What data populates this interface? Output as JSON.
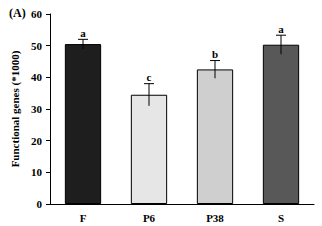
{
  "chart_data": {
    "type": "bar",
    "title": "(A)",
    "y_label": "Functional genes (*1000)",
    "categories": [
      "F",
      "P6",
      "P38",
      "S"
    ],
    "values": [
      50.5,
      34.5,
      42.5,
      50.3
    ],
    "errors": [
      1.5,
      3.5,
      2.8,
      3.0
    ],
    "annotations": [
      "a",
      "c",
      "b",
      "a"
    ],
    "colors": [
      "#1e1e1e",
      "#e6e6e6",
      "#cfcfcf",
      "#585858"
    ],
    "ylim": [
      0,
      60
    ],
    "yticks": [
      0,
      10,
      20,
      30,
      40,
      50,
      60
    ],
    "grid": false
  }
}
